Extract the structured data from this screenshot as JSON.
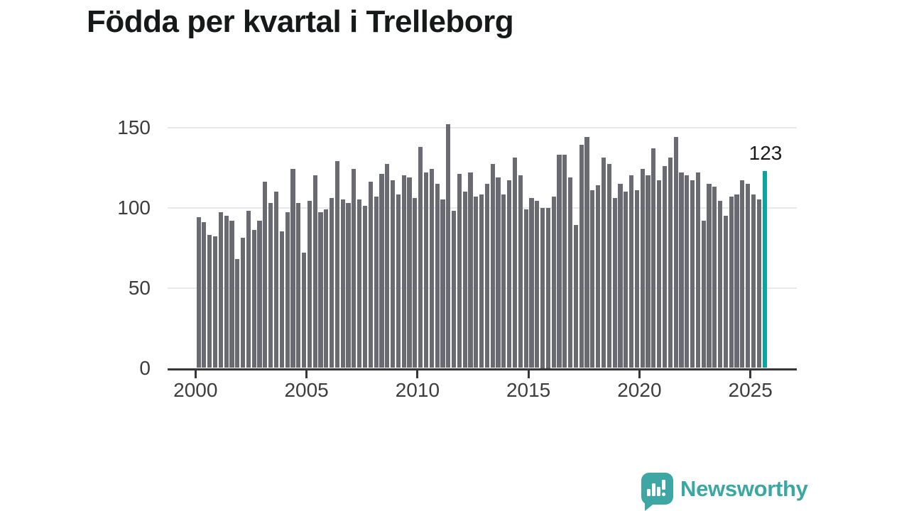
{
  "title": "Födda per kvartal i Trelleborg",
  "branding": {
    "logo_text": "Newsworthy",
    "logo_icon": "newsworthy-speech-bubble-chart-icon"
  },
  "colors": {
    "bar": "#6a6a72",
    "highlight_bar": "#0ba5a0",
    "logo_teal": "#3ba7a3",
    "axis": "#37373a",
    "gridline": "#e8e8e8",
    "text": "#3d3d3d",
    "title_text": "#16191a"
  },
  "chart_data": {
    "type": "bar",
    "title": "Födda per kvartal i Trelleborg",
    "xlabel": "",
    "ylabel": "",
    "ylim": [
      0,
      150
    ],
    "grid": "horizontal",
    "y_ticks": [
      {
        "label": "0",
        "value": 0
      },
      {
        "label": "50",
        "value": 50
      },
      {
        "label": "100",
        "value": 100
      },
      {
        "label": "150",
        "value": 150
      }
    ],
    "x_ticks": [
      {
        "label": "2000",
        "quarter_index": 0
      },
      {
        "label": "2005",
        "quarter_index": 20
      },
      {
        "label": "2010",
        "quarter_index": 40
      },
      {
        "label": "2015",
        "quarter_index": 60
      },
      {
        "label": "2020",
        "quarter_index": 80
      },
      {
        "label": "2025",
        "quarter_index": 100
      }
    ],
    "series": [
      {
        "name": "Födda per kvartal",
        "start_quarter": "2000-Q1",
        "end_quarter": "2025-Q3",
        "values": [
          94,
          91,
          83,
          82,
          97,
          95,
          92,
          68,
          81,
          98,
          86,
          92,
          116,
          103,
          110,
          85,
          97,
          124,
          103,
          72,
          104,
          120,
          97,
          99,
          106,
          129,
          105,
          103,
          124,
          105,
          101,
          116,
          107,
          121,
          127,
          117,
          108,
          120,
          119,
          106,
          138,
          122,
          124,
          115,
          105,
          152,
          98,
          121,
          110,
          122,
          107,
          108,
          115,
          127,
          119,
          108,
          117,
          131,
          120,
          99,
          106,
          104,
          100,
          100,
          107,
          133,
          133,
          119,
          89,
          139,
          144,
          111,
          114,
          131,
          127,
          106,
          115,
          110,
          120,
          111,
          124,
          120,
          137,
          117,
          126,
          131,
          144,
          122,
          120,
          117,
          122,
          92,
          115,
          113,
          104,
          95,
          107,
          108,
          117,
          115,
          108,
          105,
          123
        ]
      }
    ],
    "highlight": {
      "quarter": "2025-Q3",
      "value": 123,
      "label": "123",
      "position": "last-bar"
    },
    "legend": "none"
  }
}
